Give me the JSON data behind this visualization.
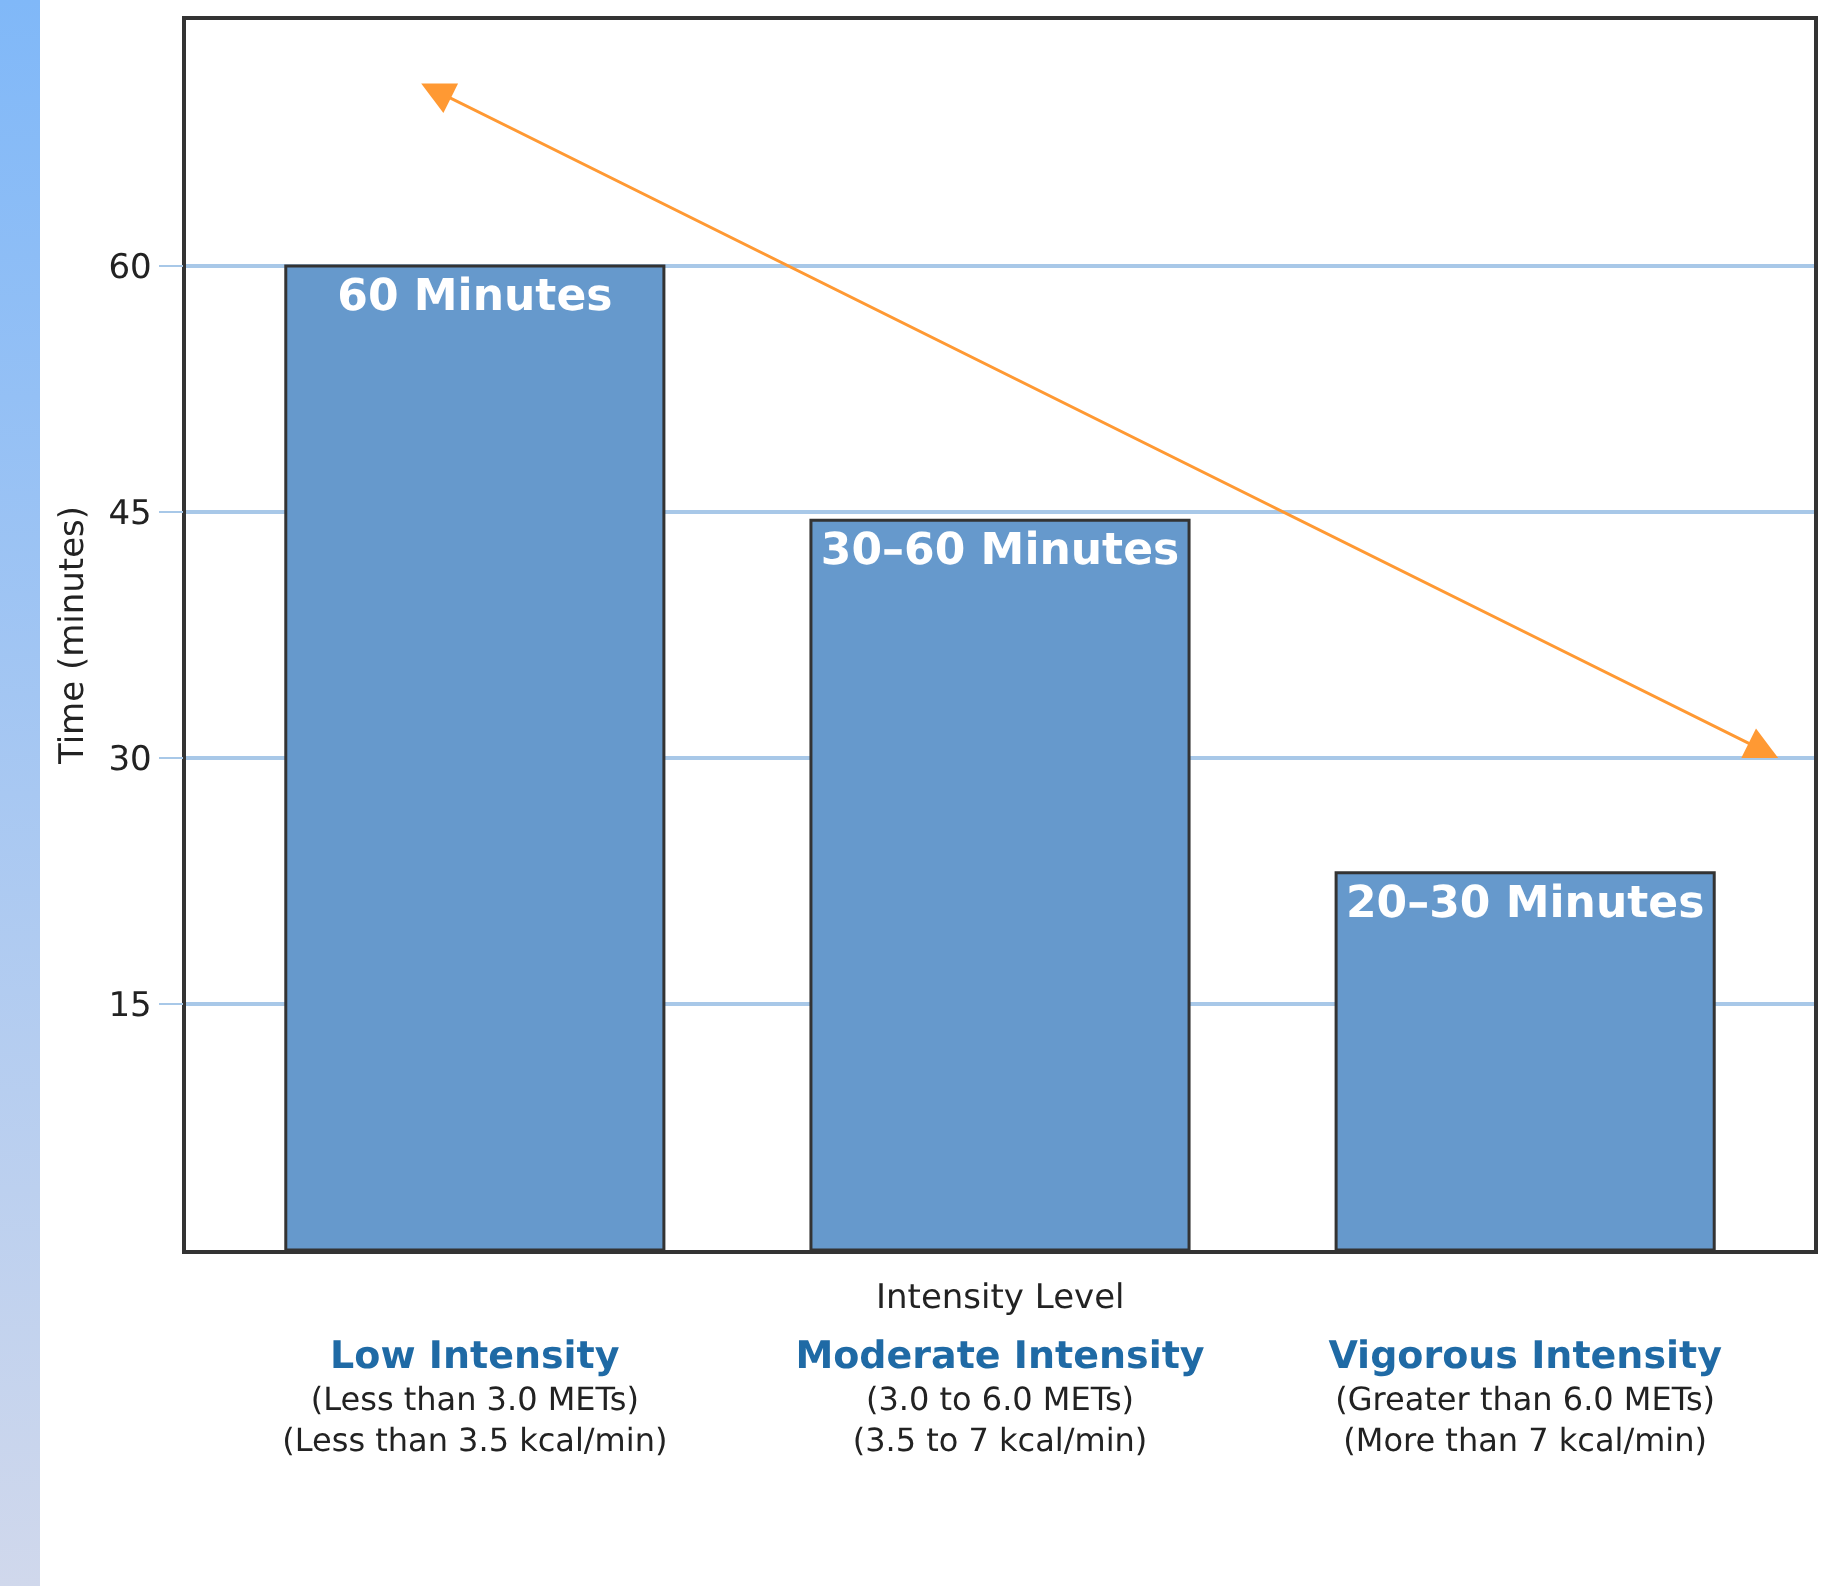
{
  "chart_data": {
    "type": "bar",
    "xlabel": "Intensity Level",
    "ylabel": "Time (minutes)",
    "categories": [
      "Low Intensity\n(Less than 3.0 METs)\n(Less than 3.5 kcal/min)",
      "Moderate Intensity\n(3.0 to 6.0 METs)\n(3.5 to 7 kcal/min)",
      "Vigorous Intensity\n(Greater than 6.0 METs)\n(More than 7 kcal/min)"
    ],
    "values": [
      60,
      44.5,
      23
    ],
    "value_labels": [
      "60 Minutes",
      "30–60 Minutes",
      "20–30 Minutes"
    ],
    "color": "#6699cc",
    "ylim": [
      0,
      75
    ],
    "yticks": [
      15,
      30,
      45,
      60
    ],
    "grid": "y"
  }
}
